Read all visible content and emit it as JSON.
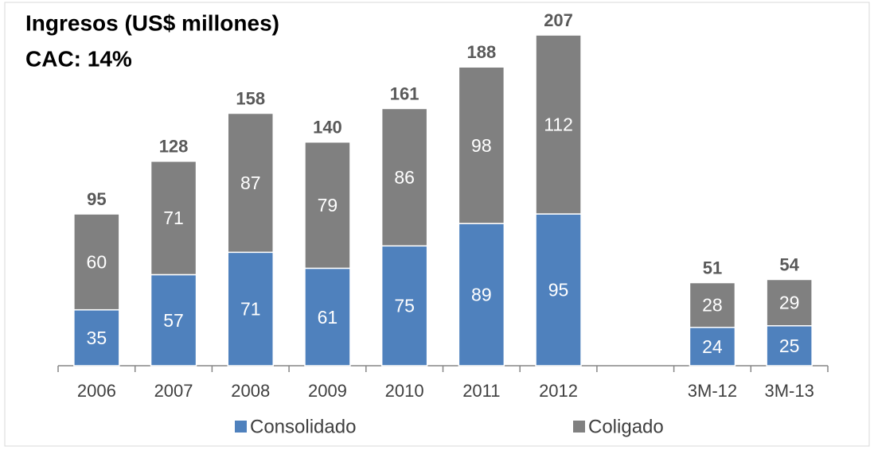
{
  "chart_data": {
    "type": "stacked_bar",
    "title": "Ingresos (US$ millones)",
    "subtitle": "CAC: 14%",
    "categories": [
      "2006",
      "2007",
      "2008",
      "2009",
      "2010",
      "2011",
      "2012",
      null,
      "3M-12",
      "3M-13"
    ],
    "series": [
      {
        "name": "Consolidado",
        "color": "#4f81bd",
        "values": [
          35,
          57,
          71,
          61,
          75,
          89,
          95,
          null,
          24,
          25
        ]
      },
      {
        "name": "Coligado",
        "color": "#808080",
        "values": [
          60,
          71,
          87,
          79,
          86,
          98,
          112,
          null,
          28,
          29
        ]
      }
    ],
    "totals": [
      95,
      128,
      158,
      140,
      161,
      188,
      207,
      null,
      51,
      54
    ],
    "ylim": [
      0,
      210
    ],
    "legend": "bottom"
  }
}
